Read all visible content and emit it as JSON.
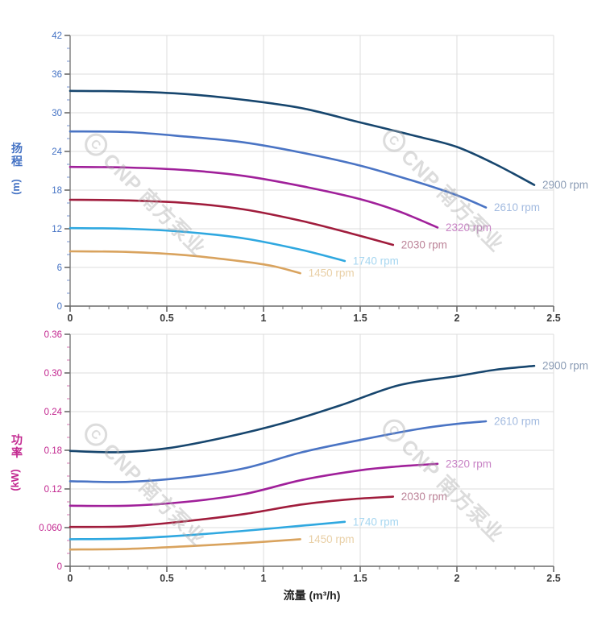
{
  "watermark": {
    "logo_letter": "C",
    "text": "CNP 南方泵业"
  },
  "chart_data": [
    {
      "type": "line",
      "title": "",
      "xlabel": "",
      "ylabel": "扬程",
      "ylabel_unit": "(m)",
      "x_range": [
        0,
        2.5
      ],
      "y_range": [
        0,
        42
      ],
      "x_ticks": [
        0,
        0.5,
        1,
        1.5,
        2,
        2.5
      ],
      "x_tick_labels": [
        "0",
        "0.5",
        "1",
        "1.5",
        "2",
        "2.5"
      ],
      "x_minor_step": 0.1,
      "y_ticks": [
        0,
        6,
        12,
        18,
        24,
        30,
        36,
        42
      ],
      "y_tick_labels": [
        "0",
        "6",
        "12",
        "18",
        "24",
        "30",
        "36",
        "42"
      ],
      "y_minor_step": 2,
      "grid": true,
      "legend_position": "end-of-line",
      "axis_color": "#4472c4",
      "minor_tick_color": "#8fa8dc",
      "series": [
        {
          "name": "2900 rpm",
          "color": "#17466e",
          "label_color": "#8b9cb5",
          "points": [
            [
              0,
              33.4
            ],
            [
              0.3,
              33.3
            ],
            [
              0.6,
              32.9
            ],
            [
              0.9,
              32.0
            ],
            [
              1.2,
              30.7
            ],
            [
              1.5,
              28.5
            ],
            [
              1.8,
              26.3
            ],
            [
              2.0,
              24.7
            ],
            [
              2.2,
              22.0
            ],
            [
              2.4,
              18.8
            ]
          ]
        },
        {
          "name": "2610 rpm",
          "color": "#4a74c4",
          "label_color": "#a3bbe0",
          "points": [
            [
              0,
              27.1
            ],
            [
              0.3,
              27.0
            ],
            [
              0.6,
              26.3
            ],
            [
              0.9,
              25.4
            ],
            [
              1.2,
              23.8
            ],
            [
              1.5,
              21.8
            ],
            [
              1.8,
              19.2
            ],
            [
              2.0,
              17.2
            ],
            [
              2.15,
              15.3
            ]
          ]
        },
        {
          "name": "2320 rpm",
          "color": "#a0209a",
          "label_color": "#c883c5",
          "points": [
            [
              0,
              21.6
            ],
            [
              0.3,
              21.5
            ],
            [
              0.6,
              21.1
            ],
            [
              0.9,
              20.2
            ],
            [
              1.2,
              18.6
            ],
            [
              1.5,
              16.6
            ],
            [
              1.7,
              14.7
            ],
            [
              1.9,
              12.2
            ]
          ]
        },
        {
          "name": "2030 rpm",
          "color": "#a01c3c",
          "label_color": "#bc8398",
          "points": [
            [
              0,
              16.5
            ],
            [
              0.3,
              16.4
            ],
            [
              0.6,
              16.0
            ],
            [
              0.9,
              15.0
            ],
            [
              1.2,
              13.2
            ],
            [
              1.45,
              11.3
            ],
            [
              1.67,
              9.5
            ]
          ]
        },
        {
          "name": "1740 rpm",
          "color": "#2fa8e0",
          "label_color": "#a6d6f0",
          "points": [
            [
              0,
              12.1
            ],
            [
              0.3,
              12.0
            ],
            [
              0.6,
              11.5
            ],
            [
              0.9,
              10.5
            ],
            [
              1.2,
              8.7
            ],
            [
              1.42,
              7.0
            ]
          ]
        },
        {
          "name": "1450 rpm",
          "color": "#d9a35e",
          "label_color": "#e9d0a7",
          "points": [
            [
              0,
              8.5
            ],
            [
              0.3,
              8.4
            ],
            [
              0.6,
              7.9
            ],
            [
              0.9,
              6.9
            ],
            [
              1.05,
              6.2
            ],
            [
              1.19,
              5.1
            ]
          ]
        }
      ]
    },
    {
      "type": "line",
      "title": "",
      "xlabel": "流量 (m³/h)",
      "ylabel": "功率",
      "ylabel_unit": "(kW)",
      "x_range": [
        0,
        2.5
      ],
      "y_range": [
        0,
        0.36
      ],
      "x_ticks": [
        0,
        0.5,
        1,
        1.5,
        2,
        2.5
      ],
      "x_tick_labels": [
        "0",
        "0.5",
        "1",
        "1.5",
        "2",
        "2.5"
      ],
      "x_minor_step": 0.1,
      "y_ticks": [
        0,
        0.06,
        0.12,
        0.18,
        0.24,
        0.3,
        0.36
      ],
      "y_tick_labels": [
        "0",
        "0.060",
        "0.12",
        "0.18",
        "0.24",
        "0.30",
        "0.36"
      ],
      "y_minor_step": 0.02,
      "grid": true,
      "legend_position": "end-of-line",
      "axis_color": "#c2268f",
      "minor_tick_color": "#de8ec2",
      "series": [
        {
          "name": "2900 rpm",
          "color": "#17466e",
          "label_color": "#8b9cb5",
          "points": [
            [
              0,
              0.179
            ],
            [
              0.25,
              0.177
            ],
            [
              0.5,
              0.183
            ],
            [
              0.8,
              0.2
            ],
            [
              1.1,
              0.222
            ],
            [
              1.4,
              0.25
            ],
            [
              1.7,
              0.281
            ],
            [
              2.0,
              0.295
            ],
            [
              2.2,
              0.305
            ],
            [
              2.4,
              0.311
            ]
          ]
        },
        {
          "name": "2610 rpm",
          "color": "#4a74c4",
          "label_color": "#a3bbe0",
          "points": [
            [
              0,
              0.132
            ],
            [
              0.3,
              0.131
            ],
            [
              0.6,
              0.138
            ],
            [
              0.9,
              0.152
            ],
            [
              1.2,
              0.177
            ],
            [
              1.5,
              0.196
            ],
            [
              1.8,
              0.213
            ],
            [
              2.0,
              0.221
            ],
            [
              2.15,
              0.225
            ]
          ]
        },
        {
          "name": "2320 rpm",
          "color": "#a0209a",
          "label_color": "#c883c5",
          "points": [
            [
              0,
              0.094
            ],
            [
              0.3,
              0.094
            ],
            [
              0.6,
              0.1
            ],
            [
              0.9,
              0.112
            ],
            [
              1.2,
              0.134
            ],
            [
              1.5,
              0.149
            ],
            [
              1.7,
              0.155
            ],
            [
              1.9,
              0.159
            ]
          ]
        },
        {
          "name": "2030 rpm",
          "color": "#a01c3c",
          "label_color": "#bc8398",
          "points": [
            [
              0,
              0.061
            ],
            [
              0.3,
              0.062
            ],
            [
              0.6,
              0.07
            ],
            [
              0.9,
              0.081
            ],
            [
              1.2,
              0.096
            ],
            [
              1.45,
              0.104
            ],
            [
              1.67,
              0.108
            ]
          ]
        },
        {
          "name": "1740 rpm",
          "color": "#2fa8e0",
          "label_color": "#a6d6f0",
          "points": [
            [
              0,
              0.042
            ],
            [
              0.3,
              0.043
            ],
            [
              0.6,
              0.048
            ],
            [
              0.9,
              0.055
            ],
            [
              1.2,
              0.063
            ],
            [
              1.42,
              0.069
            ]
          ]
        },
        {
          "name": "1450 rpm",
          "color": "#d9a35e",
          "label_color": "#e9d0a7",
          "points": [
            [
              0,
              0.026
            ],
            [
              0.3,
              0.027
            ],
            [
              0.6,
              0.031
            ],
            [
              0.9,
              0.036
            ],
            [
              1.19,
              0.042
            ]
          ]
        }
      ]
    }
  ]
}
